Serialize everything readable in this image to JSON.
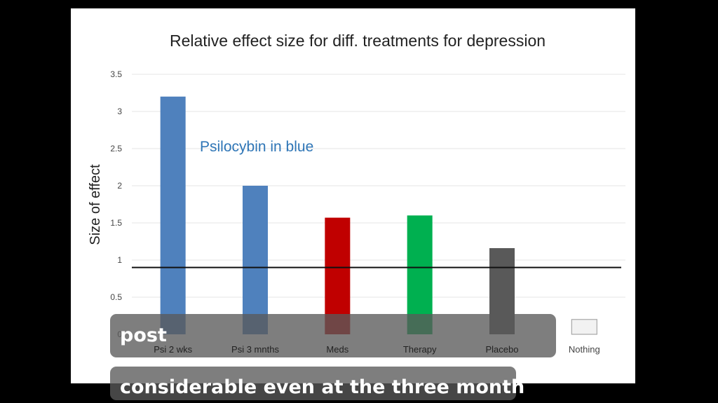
{
  "chart_data": {
    "type": "bar",
    "title": "Relative effect size for diff. treatments for depression",
    "ylabel": "Size of effect",
    "xlabel": "",
    "ylim": [
      0,
      3.5
    ],
    "yticks": [
      "0",
      "0.5",
      "1",
      "1.5",
      "2",
      "2.5",
      "3",
      "3.5"
    ],
    "categories": [
      "Psi 2 wks",
      "Psi 3 mnths",
      "Meds",
      "Therapy",
      "Placebo",
      "Nothing"
    ],
    "values": [
      3.2,
      2.0,
      1.57,
      1.6,
      1.16,
      0.2
    ],
    "colors": [
      "#4f81bd",
      "#4f81bd",
      "#c00000",
      "#00b050",
      "#595959",
      "#f2f2f2"
    ],
    "reference_line": 0.9,
    "annotation": "Psilocybin in blue",
    "annotation_color": "#2e75b6",
    "grid": true
  },
  "subtitles": {
    "line1": "post",
    "line2": "considerable even at the three month"
  }
}
